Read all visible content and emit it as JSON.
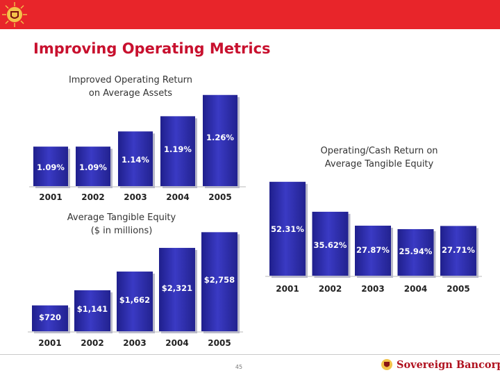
{
  "slide": {
    "title": "Improving Operating Metrics",
    "page_number": "45",
    "brand_name": "Sovereign Bancorp",
    "header_color": "#e8252a",
    "bar_color": "#2e2ea6",
    "bar_highlight": "#5a5ad6"
  },
  "chart_data": [
    {
      "type": "bar",
      "title_lines": [
        "Improved Operating Return",
        "on Average Assets"
      ],
      "categories": [
        "2001",
        "2002",
        "2003",
        "2004",
        "2005"
      ],
      "values": [
        1.09,
        1.09,
        1.14,
        1.19,
        1.26
      ],
      "data_labels": [
        "1.09%",
        "1.09%",
        "1.14%",
        "1.19%",
        "1.26%"
      ],
      "ylim": [
        0.96,
        1.28
      ],
      "grid": false
    },
    {
      "type": "bar",
      "title_lines": [
        "Operating/Cash Return on",
        "Average Tangible Equity"
      ],
      "categories": [
        "2001",
        "2002",
        "2003",
        "2004",
        "2005"
      ],
      "values": [
        52.31,
        35.62,
        27.87,
        25.94,
        27.71
      ],
      "data_labels": [
        "52.31%",
        "35.62%",
        "27.87%",
        "25.94%",
        "27.71%"
      ],
      "ylim": [
        0,
        53
      ],
      "grid": false
    },
    {
      "type": "bar",
      "title_lines": [
        "Average Tangible Equity",
        "($ in millions)"
      ],
      "categories": [
        "2001",
        "2002",
        "2003",
        "2004",
        "2005"
      ],
      "values": [
        720,
        1141,
        1662,
        2321,
        2758
      ],
      "data_labels": [
        "$720",
        "$1,141",
        "$1,662",
        "$2,321",
        "$2,758"
      ],
      "ylim": [
        0,
        2900
      ],
      "grid": false
    }
  ]
}
